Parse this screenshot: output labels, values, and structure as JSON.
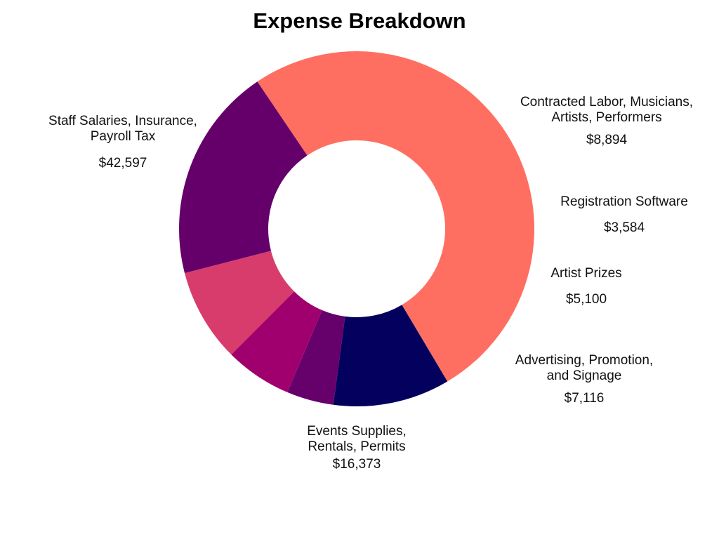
{
  "chart_data": {
    "type": "pie",
    "title": "Expense Breakdown",
    "donut": true,
    "slices": [
      {
        "label_lines": [
          "Staff Salaries, Insurance,",
          "Payroll Tax"
        ],
        "value": 42597,
        "value_label": "$42,597",
        "color": "#FF6F61"
      },
      {
        "label_lines": [
          "Contracted Labor, Musicians,",
          "Artists, Performers"
        ],
        "value": 8894,
        "value_label": "$8,894",
        "color": "#04005E"
      },
      {
        "label_lines": [
          "Registration Software"
        ],
        "value": 3584,
        "value_label": "$3,584",
        "color": "#66006B"
      },
      {
        "label_lines": [
          "Artist Prizes"
        ],
        "value": 5100,
        "value_label": "$5,100",
        "color": "#A0006E"
      },
      {
        "label_lines": [
          "Advertising, Promotion,",
          "and Signage"
        ],
        "value": 7116,
        "value_label": "$7,116",
        "color": "#D83C6C"
      },
      {
        "label_lines": [
          "Events Supplies,",
          "Rentals, Permits"
        ],
        "value": 16373,
        "value_label": "$16,373",
        "color": "#65006B"
      }
    ]
  }
}
